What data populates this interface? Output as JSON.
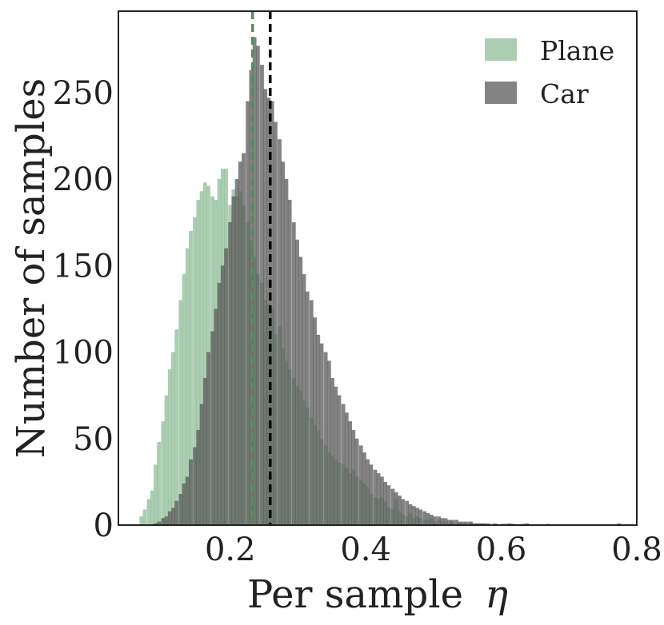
{
  "chart_data": {
    "type": "histogram",
    "xlabel": "Per sample",
    "xlabel_symbol": "η",
    "ylabel": "Number of samples",
    "xlim": [
      0.035,
      0.8
    ],
    "ylim": [
      0,
      297
    ],
    "xticks": [
      0.2,
      0.4,
      0.6,
      0.8
    ],
    "xtick_labels": [
      "0.2",
      "0.4",
      "0.6",
      "0.8"
    ],
    "yticks": [
      0,
      50,
      100,
      150,
      200,
      250
    ],
    "ytick_labels": [
      "0",
      "50",
      "100",
      "150",
      "200",
      "250"
    ],
    "grid": false,
    "legend_position": "top-right",
    "series": [
      {
        "name": "Plane",
        "color": "#8fbc98",
        "opacity": 0.75,
        "bins": [
          [
            0.066,
            5
          ],
          [
            0.071,
            9
          ],
          [
            0.077,
            15
          ],
          [
            0.082,
            20
          ],
          [
            0.087,
            35
          ],
          [
            0.092,
            48
          ],
          [
            0.098,
            60
          ],
          [
            0.103,
            75
          ],
          [
            0.108,
            90
          ],
          [
            0.113,
            100
          ],
          [
            0.118,
            113
          ],
          [
            0.124,
            130
          ],
          [
            0.129,
            145
          ],
          [
            0.134,
            160
          ],
          [
            0.139,
            170
          ],
          [
            0.145,
            178
          ],
          [
            0.15,
            188
          ],
          [
            0.155,
            193
          ],
          [
            0.16,
            198
          ],
          [
            0.165,
            196
          ],
          [
            0.171,
            190
          ],
          [
            0.176,
            188
          ],
          [
            0.181,
            200
          ],
          [
            0.186,
            206
          ],
          [
            0.191,
            206
          ],
          [
            0.197,
            185
          ],
          [
            0.202,
            194
          ],
          [
            0.207,
            190
          ],
          [
            0.212,
            193
          ],
          [
            0.217,
            185
          ],
          [
            0.223,
            175
          ],
          [
            0.228,
            165
          ],
          [
            0.233,
            155
          ],
          [
            0.238,
            145
          ],
          [
            0.244,
            140
          ],
          [
            0.249,
            130
          ],
          [
            0.254,
            128
          ],
          [
            0.259,
            125
          ],
          [
            0.264,
            110
          ],
          [
            0.27,
            115
          ],
          [
            0.275,
            102
          ],
          [
            0.28,
            95
          ],
          [
            0.285,
            90
          ],
          [
            0.291,
            85
          ],
          [
            0.296,
            80
          ],
          [
            0.301,
            78
          ],
          [
            0.306,
            72
          ],
          [
            0.311,
            68
          ],
          [
            0.317,
            62
          ],
          [
            0.322,
            58
          ],
          [
            0.327,
            55
          ],
          [
            0.332,
            50
          ],
          [
            0.338,
            46
          ],
          [
            0.343,
            42
          ],
          [
            0.348,
            40
          ],
          [
            0.353,
            38
          ],
          [
            0.358,
            36
          ],
          [
            0.364,
            35
          ],
          [
            0.369,
            33
          ],
          [
            0.374,
            30
          ],
          [
            0.379,
            32
          ],
          [
            0.384,
            28
          ],
          [
            0.39,
            26
          ],
          [
            0.395,
            24
          ],
          [
            0.4,
            22
          ],
          [
            0.405,
            18
          ],
          [
            0.411,
            16
          ],
          [
            0.416,
            15
          ],
          [
            0.421,
            16
          ],
          [
            0.426,
            14
          ],
          [
            0.431,
            10
          ],
          [
            0.437,
            9
          ],
          [
            0.442,
            15
          ],
          [
            0.447,
            8
          ],
          [
            0.452,
            6
          ],
          [
            0.458,
            5
          ],
          [
            0.463,
            7
          ],
          [
            0.468,
            4
          ],
          [
            0.473,
            5
          ],
          [
            0.478,
            4
          ],
          [
            0.484,
            3
          ],
          [
            0.489,
            3
          ],
          [
            0.494,
            4
          ],
          [
            0.499,
            2
          ],
          [
            0.505,
            3
          ],
          [
            0.51,
            2
          ],
          [
            0.515,
            2
          ],
          [
            0.52,
            1
          ],
          [
            0.525,
            2
          ],
          [
            0.531,
            1
          ],
          [
            0.536,
            1
          ],
          [
            0.541,
            1
          ],
          [
            0.546,
            1
          ],
          [
            0.552,
            2
          ],
          [
            0.557,
            1
          ],
          [
            0.562,
            1
          ],
          [
            0.567,
            1
          ],
          [
            0.572,
            1
          ],
          [
            0.578,
            0
          ],
          [
            0.583,
            0
          ],
          [
            0.588,
            0
          ],
          [
            0.593,
            0
          ],
          [
            0.599,
            1
          ],
          [
            0.604,
            1
          ],
          [
            0.609,
            0
          ],
          [
            0.614,
            1
          ],
          [
            0.619,
            0
          ],
          [
            0.625,
            0
          ],
          [
            0.63,
            1
          ],
          [
            0.635,
            0
          ],
          [
            0.64,
            0
          ],
          [
            0.646,
            0
          ],
          [
            0.651,
            0
          ],
          [
            0.656,
            0
          ],
          [
            0.661,
            0
          ],
          [
            0.666,
            1
          ],
          [
            0.672,
            0
          ]
        ]
      },
      {
        "name": "Car",
        "color": "#595959",
        "opacity": 0.75,
        "bins": [
          [
            0.087,
            1
          ],
          [
            0.092,
            2
          ],
          [
            0.098,
            4
          ],
          [
            0.103,
            5
          ],
          [
            0.108,
            8
          ],
          [
            0.113,
            10
          ],
          [
            0.118,
            14
          ],
          [
            0.124,
            18
          ],
          [
            0.129,
            24
          ],
          [
            0.134,
            28
          ],
          [
            0.139,
            38
          ],
          [
            0.145,
            45
          ],
          [
            0.15,
            55
          ],
          [
            0.155,
            70
          ],
          [
            0.16,
            85
          ],
          [
            0.165,
            100
          ],
          [
            0.171,
            112
          ],
          [
            0.176,
            125
          ],
          [
            0.181,
            140
          ],
          [
            0.186,
            150
          ],
          [
            0.191,
            160
          ],
          [
            0.197,
            175
          ],
          [
            0.202,
            190
          ],
          [
            0.207,
            200
          ],
          [
            0.212,
            210
          ],
          [
            0.217,
            215
          ],
          [
            0.223,
            245
          ],
          [
            0.228,
            263
          ],
          [
            0.233,
            282
          ],
          [
            0.238,
            277
          ],
          [
            0.244,
            266
          ],
          [
            0.249,
            252
          ],
          [
            0.254,
            247
          ],
          [
            0.259,
            245
          ],
          [
            0.264,
            233
          ],
          [
            0.27,
            223
          ],
          [
            0.275,
            210
          ],
          [
            0.28,
            200
          ],
          [
            0.285,
            188
          ],
          [
            0.291,
            175
          ],
          [
            0.296,
            165
          ],
          [
            0.301,
            155
          ],
          [
            0.306,
            145
          ],
          [
            0.311,
            135
          ],
          [
            0.317,
            130
          ],
          [
            0.322,
            120
          ],
          [
            0.327,
            110
          ],
          [
            0.332,
            105
          ],
          [
            0.338,
            100
          ],
          [
            0.343,
            95
          ],
          [
            0.348,
            85
          ],
          [
            0.353,
            80
          ],
          [
            0.358,
            75
          ],
          [
            0.364,
            70
          ],
          [
            0.369,
            65
          ],
          [
            0.374,
            60
          ],
          [
            0.379,
            55
          ],
          [
            0.384,
            50
          ],
          [
            0.39,
            46
          ],
          [
            0.395,
            42
          ],
          [
            0.4,
            38
          ],
          [
            0.405,
            35
          ],
          [
            0.411,
            32
          ],
          [
            0.416,
            30
          ],
          [
            0.421,
            28
          ],
          [
            0.426,
            25
          ],
          [
            0.431,
            23
          ],
          [
            0.437,
            21
          ],
          [
            0.442,
            19
          ],
          [
            0.447,
            17
          ],
          [
            0.452,
            15
          ],
          [
            0.458,
            14
          ],
          [
            0.463,
            12
          ],
          [
            0.468,
            11
          ],
          [
            0.473,
            10
          ],
          [
            0.478,
            9
          ],
          [
            0.484,
            8
          ],
          [
            0.489,
            7
          ],
          [
            0.494,
            6
          ],
          [
            0.499,
            5
          ],
          [
            0.505,
            5
          ],
          [
            0.51,
            4
          ],
          [
            0.515,
            4
          ],
          [
            0.52,
            3
          ],
          [
            0.525,
            3
          ],
          [
            0.531,
            3
          ],
          [
            0.536,
            2
          ],
          [
            0.541,
            2
          ],
          [
            0.546,
            2
          ],
          [
            0.552,
            2
          ],
          [
            0.557,
            1
          ],
          [
            0.562,
            1
          ],
          [
            0.567,
            1
          ],
          [
            0.572,
            1
          ],
          [
            0.578,
            1
          ],
          [
            0.583,
            0
          ],
          [
            0.588,
            1
          ],
          [
            0.593,
            0
          ],
          [
            0.599,
            0
          ],
          [
            0.604,
            0
          ],
          [
            0.609,
            1
          ],
          [
            0.614,
            0
          ],
          [
            0.619,
            0
          ],
          [
            0.625,
            0
          ],
          [
            0.63,
            0
          ],
          [
            0.635,
            1
          ],
          [
            0.64,
            0
          ],
          [
            0.646,
            0
          ],
          [
            0.651,
            0
          ],
          [
            0.656,
            0
          ],
          [
            0.661,
            0
          ],
          [
            0.666,
            0
          ],
          [
            0.672,
            0
          ],
          [
            0.677,
            0
          ],
          [
            0.682,
            0
          ],
          [
            0.687,
            0
          ],
          [
            0.693,
            0
          ],
          [
            0.698,
            0
          ],
          [
            0.703,
            0
          ],
          [
            0.708,
            0
          ],
          [
            0.713,
            0
          ],
          [
            0.719,
            0
          ],
          [
            0.724,
            0
          ],
          [
            0.729,
            0
          ],
          [
            0.734,
            0
          ],
          [
            0.739,
            0
          ],
          [
            0.745,
            0
          ],
          [
            0.75,
            0
          ],
          [
            0.755,
            0
          ],
          [
            0.76,
            0
          ],
          [
            0.765,
            0
          ],
          [
            0.771,
            1
          ]
        ]
      }
    ],
    "bin_width": 0.00523,
    "mean_lines": [
      {
        "series": "Plane",
        "x": 0.233,
        "color": "#4f9058",
        "style": "dashed"
      },
      {
        "series": "Car",
        "x": 0.259,
        "color": "#000000",
        "style": "dashed"
      }
    ]
  }
}
